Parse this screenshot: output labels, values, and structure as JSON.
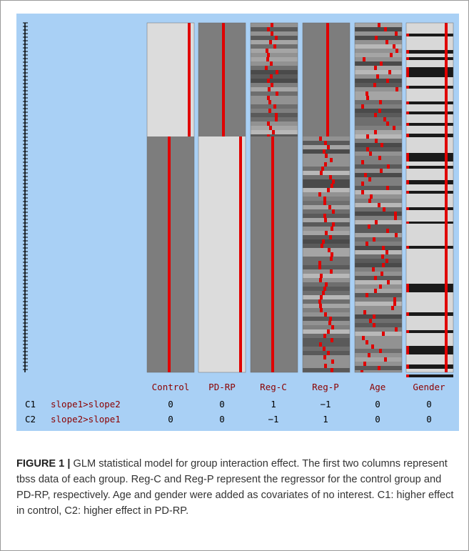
{
  "figure": {
    "caption_label": "FIGURE 1 |",
    "caption_text": "GLM statistical model for group interaction effect. The first two columns represent tbss data of each group. Reg-C and Reg-P represent the regressor for the control group and PD-RP, respectively. Age and gender were added as covariates of no interest. C1: higher effect in control, C2: higher effect in PD-RP."
  },
  "design_matrix": {
    "columns": [
      "Control",
      "PD-RP",
      "Reg-C",
      "Reg-P",
      "Age",
      "Gender"
    ],
    "contrasts": [
      {
        "id": "C1",
        "name": "slope1>slope2",
        "values": [
          "0",
          "0",
          "1",
          "−1",
          "0",
          "0"
        ]
      },
      {
        "id": "C2",
        "name": "slope2>slope1",
        "values": [
          "0",
          "0",
          "−1",
          "1",
          "0",
          "0"
        ]
      }
    ]
  },
  "colors": {
    "panel_bg": "#a9d0f5",
    "label_red": "#8b0000",
    "trace_red": "#e00000"
  }
}
